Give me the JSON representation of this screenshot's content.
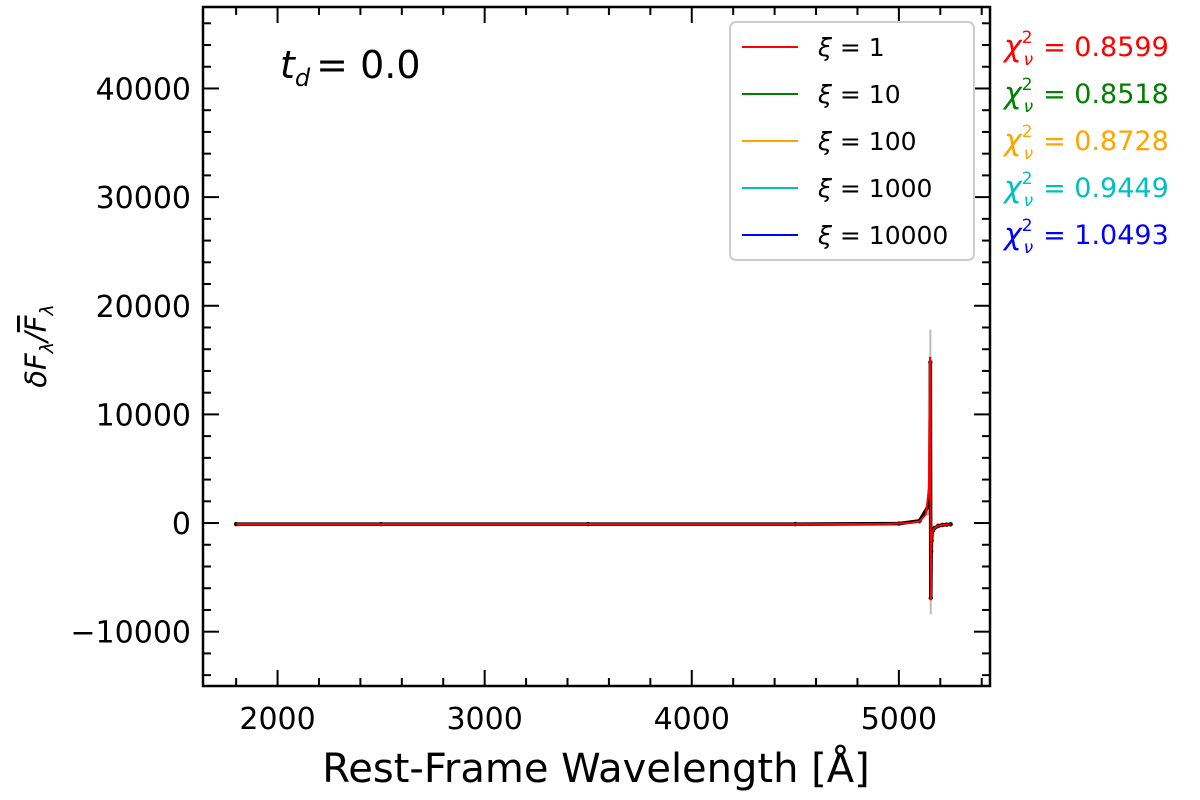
{
  "chart_data": {
    "type": "line",
    "annotation": {
      "prefix": "t",
      "subscript": "d",
      "value": "0.0"
    },
    "xlabel": "Rest-Frame Wavelength [Å]",
    "ylabel": {
      "base": "δF",
      "sub": "λ",
      "denominator": "F",
      "denominator_sub": "λ"
    },
    "xlim": [
      1640,
      5440
    ],
    "ylim": [
      -15000,
      47500
    ],
    "x_ticks": [
      2000,
      3000,
      4000,
      5000
    ],
    "x_tick_labels": [
      "2000",
      "3000",
      "4000",
      "5000"
    ],
    "y_ticks": [
      -10000,
      0,
      10000,
      20000,
      30000,
      40000
    ],
    "y_tick_labels": [
      "−10000",
      "0",
      "10000",
      "20000",
      "30000",
      "40000"
    ],
    "grid": false,
    "legend_position": "top-right",
    "legend": [
      {
        "name": "ξ = 1",
        "color": "#ff0000"
      },
      {
        "name": "ξ = 10",
        "color": "#008000"
      },
      {
        "name": "ξ = 100",
        "color": "#ffa500"
      },
      {
        "name": "ξ = 1000",
        "color": "#00bfbf"
      },
      {
        "name": "ξ = 10000",
        "color": "#0000ff"
      }
    ],
    "chi_squared": [
      {
        "label": "χ",
        "sub": "ν",
        "sup": "2",
        "value": "= 0.8599",
        "color": "#ff0000"
      },
      {
        "label": "χ",
        "sub": "ν",
        "sup": "2",
        "value": "= 0.8518",
        "color": "#008000"
      },
      {
        "label": "χ",
        "sub": "ν",
        "sup": "2",
        "value": "= 0.8728",
        "color": "#ffa500"
      },
      {
        "label": "χ",
        "sub": "ν",
        "sup": "2",
        "value": "= 0.9449",
        "color": "#00bfbf"
      },
      {
        "label": "χ",
        "sub": "ν",
        "sup": "2",
        "value": "= 1.0493",
        "color": "#0000ff"
      }
    ],
    "series": [
      {
        "color": "#ff0000",
        "x": [
          1800,
          2500,
          3500,
          4500,
          4950,
          5050,
          5100,
          5130,
          5145,
          5150,
          5152,
          5153,
          5154,
          5155,
          5156,
          5158,
          5160,
          5170,
          5190,
          5210,
          5230,
          5250
        ],
        "y": [
          -100,
          -100,
          -100,
          -100,
          -80,
          0,
          150,
          800,
          3000,
          15200,
          15200,
          0,
          -7000,
          -7000,
          -2500,
          -1500,
          -900,
          -500,
          -250,
          -180,
          -150,
          -120
        ]
      }
    ],
    "observed": {
      "x": [
        1800,
        2500,
        3500,
        4500,
        5000,
        5100,
        5140,
        5150,
        5152,
        5154,
        5156,
        5158,
        5160,
        5170,
        5190,
        5210,
        5230,
        5250
      ],
      "y": [
        -100,
        -100,
        -100,
        -100,
        -50,
        200,
        1500,
        3500,
        14800,
        -6900,
        -2600,
        -1600,
        -900,
        -500,
        -260,
        -180,
        -150,
        -120
      ],
      "err": [
        50,
        50,
        50,
        60,
        100,
        300,
        800,
        1000,
        3000,
        1500,
        900,
        600,
        400,
        300,
        200,
        150,
        120,
        100
      ]
    }
  }
}
